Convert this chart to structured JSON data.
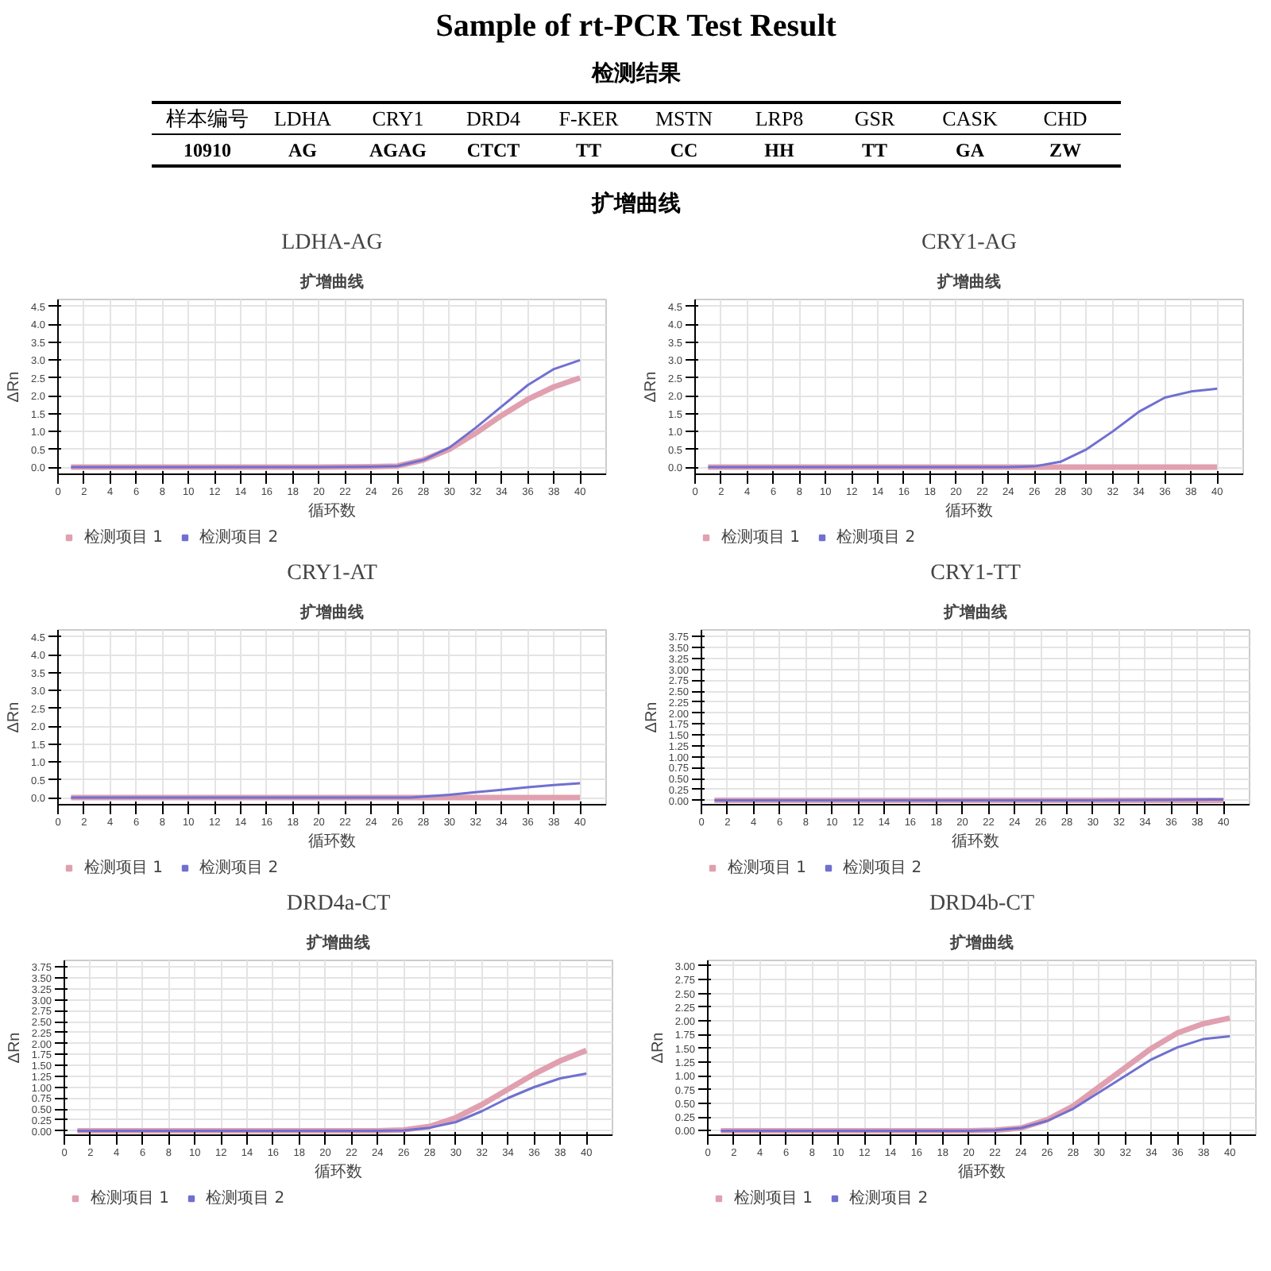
{
  "chart_data": [
    {
      "type": "other",
      "title": "Sample of rt-PCR Test Result",
      "subtitle": "检测结果",
      "categories": [
        "样本编号",
        "LDHA",
        "CRY1",
        "DRD4",
        "F-KER",
        "MSTN",
        "LRP8",
        "GSR",
        "CASK",
        "CHD"
      ],
      "annotations": [
        "10910",
        "AG",
        "AGAG",
        "CTCT",
        "TT",
        "CC",
        "HH",
        "TT",
        "GA",
        "ZW"
      ]
    },
    {
      "type": "other",
      "title": "扩增曲线"
    },
    {
      "type": "line",
      "title": "LDHA-AG",
      "subtitle": "扩增曲线",
      "xlabel": "循环数",
      "ylabel": "ΔRn",
      "xlim": [
        0,
        42
      ],
      "ylim": [
        -0.2,
        4.7
      ],
      "xticks": [
        0,
        2,
        4,
        6,
        8,
        10,
        12,
        14,
        16,
        18,
        20,
        22,
        24,
        26,
        28,
        30,
        32,
        34,
        36,
        38,
        40
      ],
      "yticks": [
        {
          "value": 0,
          "label": "0.0"
        },
        {
          "value": 0.5,
          "label": "0.5"
        },
        {
          "value": 1,
          "label": "1.0"
        },
        {
          "value": 1.5,
          "label": "1.5"
        },
        {
          "value": 2,
          "label": "2.0"
        },
        {
          "value": 2.5,
          "label": "2.5"
        },
        {
          "value": 3,
          "label": "3.0"
        },
        {
          "value": 3.5,
          "label": "3.5"
        },
        {
          "value": 4,
          "label": "4.0"
        },
        {
          "value": 4.5,
          "label": "4.5"
        }
      ],
      "grid": true,
      "legend": "bottom left",
      "series": [
        {
          "name": "检测项目 1",
          "color": "#e0a0b0",
          "x": [
            1,
            10,
            20,
            24,
            26,
            28,
            30,
            32,
            34,
            36,
            38,
            40
          ],
          "values": [
            0,
            0,
            0,
            0.01,
            0.03,
            0.2,
            0.5,
            0.95,
            1.45,
            1.9,
            2.25,
            2.5
          ]
        },
        {
          "name": "检测项目 2",
          "color": "#7070d0",
          "x": [
            1,
            10,
            20,
            24,
            26,
            28,
            30,
            32,
            34,
            36,
            38,
            40
          ],
          "values": [
            0,
            0,
            0,
            0.01,
            0.03,
            0.2,
            0.55,
            1.1,
            1.7,
            2.3,
            2.75,
            3.0
          ]
        }
      ]
    },
    {
      "type": "line",
      "title": "CRY1-AG",
      "subtitle": "扩增曲线",
      "xlabel": "循环数",
      "ylabel": "ΔRn",
      "xlim": [
        0,
        42
      ],
      "ylim": [
        -0.2,
        4.7
      ],
      "xticks": [
        0,
        2,
        4,
        6,
        8,
        10,
        12,
        14,
        16,
        18,
        20,
        22,
        24,
        26,
        28,
        30,
        32,
        34,
        36,
        38,
        40
      ],
      "yticks": [
        {
          "value": 0,
          "label": "0.0"
        },
        {
          "value": 0.5,
          "label": "0.5"
        },
        {
          "value": 1,
          "label": "1.0"
        },
        {
          "value": 1.5,
          "label": "1.5"
        },
        {
          "value": 2,
          "label": "2.0"
        },
        {
          "value": 2.5,
          "label": "2.5"
        },
        {
          "value": 3,
          "label": "3.0"
        },
        {
          "value": 3.5,
          "label": "3.5"
        },
        {
          "value": 4,
          "label": "4.0"
        },
        {
          "value": 4.5,
          "label": "4.5"
        }
      ],
      "grid": true,
      "legend": "bottom left",
      "series": [
        {
          "name": "检测项目 1",
          "color": "#e0a0b0",
          "x": [
            1,
            10,
            20,
            30,
            40
          ],
          "values": [
            0,
            0,
            0,
            0,
            0
          ]
        },
        {
          "name": "检测项目 2",
          "color": "#7070d0",
          "x": [
            1,
            10,
            20,
            24,
            26,
            28,
            30,
            32,
            34,
            36,
            38,
            40
          ],
          "values": [
            0,
            0,
            0,
            0,
            0.02,
            0.15,
            0.5,
            1.0,
            1.55,
            1.95,
            2.12,
            2.2
          ]
        }
      ]
    },
    {
      "type": "line",
      "title": "CRY1-AT",
      "subtitle": "扩增曲线",
      "xlabel": "循环数",
      "ylabel": "ΔRn",
      "xlim": [
        0,
        42
      ],
      "ylim": [
        -0.2,
        4.7
      ],
      "xticks": [
        0,
        2,
        4,
        6,
        8,
        10,
        12,
        14,
        16,
        18,
        20,
        22,
        24,
        26,
        28,
        30,
        32,
        34,
        36,
        38,
        40
      ],
      "yticks": [
        {
          "value": 0,
          "label": "0.0"
        },
        {
          "value": 0.5,
          "label": "0.5"
        },
        {
          "value": 1,
          "label": "1.0"
        },
        {
          "value": 1.5,
          "label": "1.5"
        },
        {
          "value": 2,
          "label": "2.0"
        },
        {
          "value": 2.5,
          "label": "2.5"
        },
        {
          "value": 3,
          "label": "3.0"
        },
        {
          "value": 3.5,
          "label": "3.5"
        },
        {
          "value": 4,
          "label": "4.0"
        },
        {
          "value": 4.5,
          "label": "4.5"
        }
      ],
      "grid": true,
      "legend": "bottom left",
      "series": [
        {
          "name": "检测项目 1",
          "color": "#e0a0b0",
          "x": [
            1,
            10,
            20,
            30,
            40
          ],
          "values": [
            0,
            0,
            0,
            0,
            0
          ]
        },
        {
          "name": "检测项目 2",
          "color": "#7070d0",
          "x": [
            1,
            10,
            20,
            27,
            30,
            32,
            34,
            36,
            38,
            40
          ],
          "values": [
            0,
            0,
            0,
            0,
            0.08,
            0.15,
            0.22,
            0.29,
            0.35,
            0.4
          ]
        }
      ]
    },
    {
      "type": "line",
      "title": "CRY1-TT",
      "subtitle": "扩增曲线",
      "xlabel": "循环数",
      "ylabel": "ΔRn",
      "xlim": [
        0,
        42
      ],
      "ylim": [
        -0.1,
        3.9
      ],
      "xticks": [
        0,
        2,
        4,
        6,
        8,
        10,
        12,
        14,
        16,
        18,
        20,
        22,
        24,
        26,
        28,
        30,
        32,
        34,
        36,
        38,
        40
      ],
      "yticks": [
        {
          "value": 0,
          "label": "0.00"
        },
        {
          "value": 0.25,
          "label": "0.25"
        },
        {
          "value": 0.5,
          "label": "0.50"
        },
        {
          "value": 0.75,
          "label": "0.75"
        },
        {
          "value": 1,
          "label": "1.00"
        },
        {
          "value": 1.25,
          "label": "1.25"
        },
        {
          "value": 1.5,
          "label": "1.50"
        },
        {
          "value": 1.75,
          "label": "1.75"
        },
        {
          "value": 2,
          "label": "2.00"
        },
        {
          "value": 2.25,
          "label": "2.25"
        },
        {
          "value": 2.5,
          "label": "2.50"
        },
        {
          "value": 2.75,
          "label": "2.75"
        },
        {
          "value": 3,
          "label": "3.00"
        },
        {
          "value": 3.25,
          "label": "3.25"
        },
        {
          "value": 3.5,
          "label": "3.50"
        },
        {
          "value": 3.75,
          "label": "3.75"
        }
      ],
      "grid": true,
      "legend": "bottom left",
      "series": [
        {
          "name": "检测项目 1",
          "color": "#e0a0b0",
          "x": [
            1,
            10,
            20,
            30,
            40
          ],
          "values": [
            0,
            0,
            0,
            0,
            0
          ]
        },
        {
          "name": "检测项目 2",
          "color": "#7070d0",
          "x": [
            1,
            10,
            20,
            30,
            36,
            40
          ],
          "values": [
            0,
            0,
            0,
            0,
            0.01,
            0.02
          ]
        }
      ]
    },
    {
      "type": "line",
      "title": "DRD4a-CT",
      "subtitle": "扩增曲线",
      "xlabel": "循环数",
      "ylabel": "ΔRn",
      "xlim": [
        0,
        42
      ],
      "ylim": [
        -0.1,
        3.9
      ],
      "xticks": [
        0,
        2,
        4,
        6,
        8,
        10,
        12,
        14,
        16,
        18,
        20,
        22,
        24,
        26,
        28,
        30,
        32,
        34,
        36,
        38,
        40
      ],
      "yticks": [
        {
          "value": 0,
          "label": "0.00"
        },
        {
          "value": 0.25,
          "label": "0.25"
        },
        {
          "value": 0.5,
          "label": "0.50"
        },
        {
          "value": 0.75,
          "label": "0.75"
        },
        {
          "value": 1,
          "label": "1.00"
        },
        {
          "value": 1.25,
          "label": "1.25"
        },
        {
          "value": 1.5,
          "label": "1.50"
        },
        {
          "value": 1.75,
          "label": "1.75"
        },
        {
          "value": 2,
          "label": "2.00"
        },
        {
          "value": 2.25,
          "label": "2.25"
        },
        {
          "value": 2.5,
          "label": "2.50"
        },
        {
          "value": 2.75,
          "label": "2.75"
        },
        {
          "value": 3,
          "label": "3.00"
        },
        {
          "value": 3.25,
          "label": "3.25"
        },
        {
          "value": 3.5,
          "label": "3.50"
        },
        {
          "value": 3.75,
          "label": "3.75"
        }
      ],
      "grid": true,
      "legend": "bottom left",
      "series": [
        {
          "name": "检测项目 1",
          "color": "#e0a0b0",
          "x": [
            1,
            10,
            20,
            24,
            26,
            28,
            30,
            32,
            34,
            36,
            38,
            40
          ],
          "values": [
            0,
            0,
            0,
            0,
            0.02,
            0.1,
            0.3,
            0.6,
            0.95,
            1.3,
            1.6,
            1.84
          ]
        },
        {
          "name": "检测项目 2",
          "color": "#7070d0",
          "x": [
            1,
            10,
            20,
            24,
            26,
            28,
            30,
            32,
            34,
            36,
            38,
            40
          ],
          "values": [
            0,
            0,
            0,
            0,
            0.01,
            0.07,
            0.2,
            0.45,
            0.75,
            1.0,
            1.2,
            1.31
          ]
        }
      ]
    },
    {
      "type": "line",
      "title": "DRD4b-CT",
      "subtitle": "扩增曲线",
      "xlabel": "循环数",
      "ylabel": "ΔRn",
      "xlim": [
        0,
        42
      ],
      "ylim": [
        -0.08,
        3.1
      ],
      "xticks": [
        0,
        2,
        4,
        6,
        8,
        10,
        12,
        14,
        16,
        18,
        20,
        22,
        24,
        26,
        28,
        30,
        32,
        34,
        36,
        38,
        40
      ],
      "yticks": [
        {
          "value": 0,
          "label": "0.00"
        },
        {
          "value": 0.25,
          "label": "0.25"
        },
        {
          "value": 0.5,
          "label": "0.50"
        },
        {
          "value": 0.75,
          "label": "0.75"
        },
        {
          "value": 1,
          "label": "1.00"
        },
        {
          "value": 1.25,
          "label": "1.25"
        },
        {
          "value": 1.5,
          "label": "1.50"
        },
        {
          "value": 1.75,
          "label": "1.75"
        },
        {
          "value": 2,
          "label": "2.00"
        },
        {
          "value": 2.25,
          "label": "2.25"
        },
        {
          "value": 2.5,
          "label": "2.50"
        },
        {
          "value": 2.75,
          "label": "2.75"
        },
        {
          "value": 3,
          "label": "3.00"
        }
      ],
      "grid": true,
      "legend": "bottom left",
      "series": [
        {
          "name": "检测项目 1",
          "color": "#e0a0b0",
          "x": [
            1,
            10,
            20,
            22,
            24,
            26,
            28,
            30,
            32,
            34,
            36,
            38,
            40
          ],
          "values": [
            0,
            0,
            0,
            0.01,
            0.05,
            0.2,
            0.45,
            0.8,
            1.15,
            1.5,
            1.78,
            1.95,
            2.05
          ]
        },
        {
          "name": "检测项目 2",
          "color": "#7070d0",
          "x": [
            1,
            10,
            20,
            22,
            24,
            26,
            28,
            30,
            32,
            34,
            36,
            38,
            40
          ],
          "values": [
            0,
            0,
            0,
            0.01,
            0.05,
            0.18,
            0.4,
            0.7,
            1.0,
            1.3,
            1.52,
            1.67,
            1.72
          ]
        }
      ]
    }
  ]
}
